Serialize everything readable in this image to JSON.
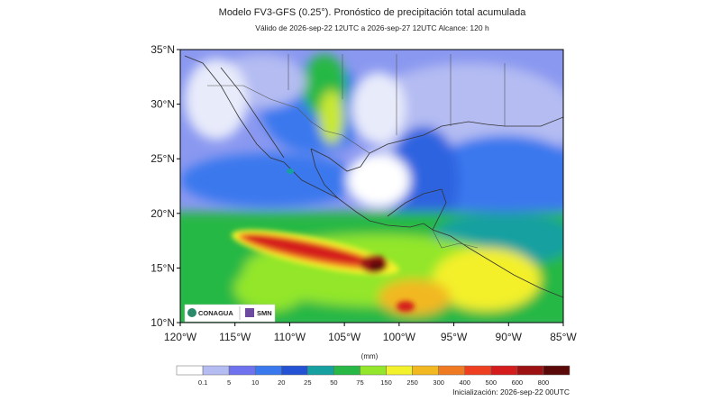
{
  "header": {
    "title": "Modelo FV3-GFS (0.25°). Pronóstico de precipitación total acumulada",
    "subtitle": "Válido de 2026-sep-22 12UTC a 2026-sep-27 12UTC    Alcance: 120 h"
  },
  "map": {
    "lat_labels": [
      "35°N",
      "30°N",
      "25°N",
      "20°N",
      "15°N",
      "10°N"
    ],
    "lon_labels": [
      "120°W",
      "115°W",
      "110°W",
      "105°W",
      "100°W",
      "95°W",
      "90°W",
      "85°W"
    ],
    "logos": [
      "CONAGUA",
      "SMN"
    ]
  },
  "colorbar": {
    "unit": "(mm)",
    "labels": [
      "0.1",
      "5",
      "10",
      "20",
      "25",
      "50",
      "75",
      "150",
      "250",
      "300",
      "400",
      "500",
      "600",
      "800"
    ],
    "colors": [
      "#ffffff",
      "#b4bcf2",
      "#6f72ee",
      "#3a78ee",
      "#2452d4",
      "#17a0a0",
      "#27b845",
      "#93e62b",
      "#f3f02c",
      "#f2b822",
      "#f07a22",
      "#ee4020",
      "#d41c1c",
      "#9c1212",
      "#5a0808"
    ]
  },
  "footer": {
    "init": "Inicialización: 2026-sep-22 00UTC"
  }
}
